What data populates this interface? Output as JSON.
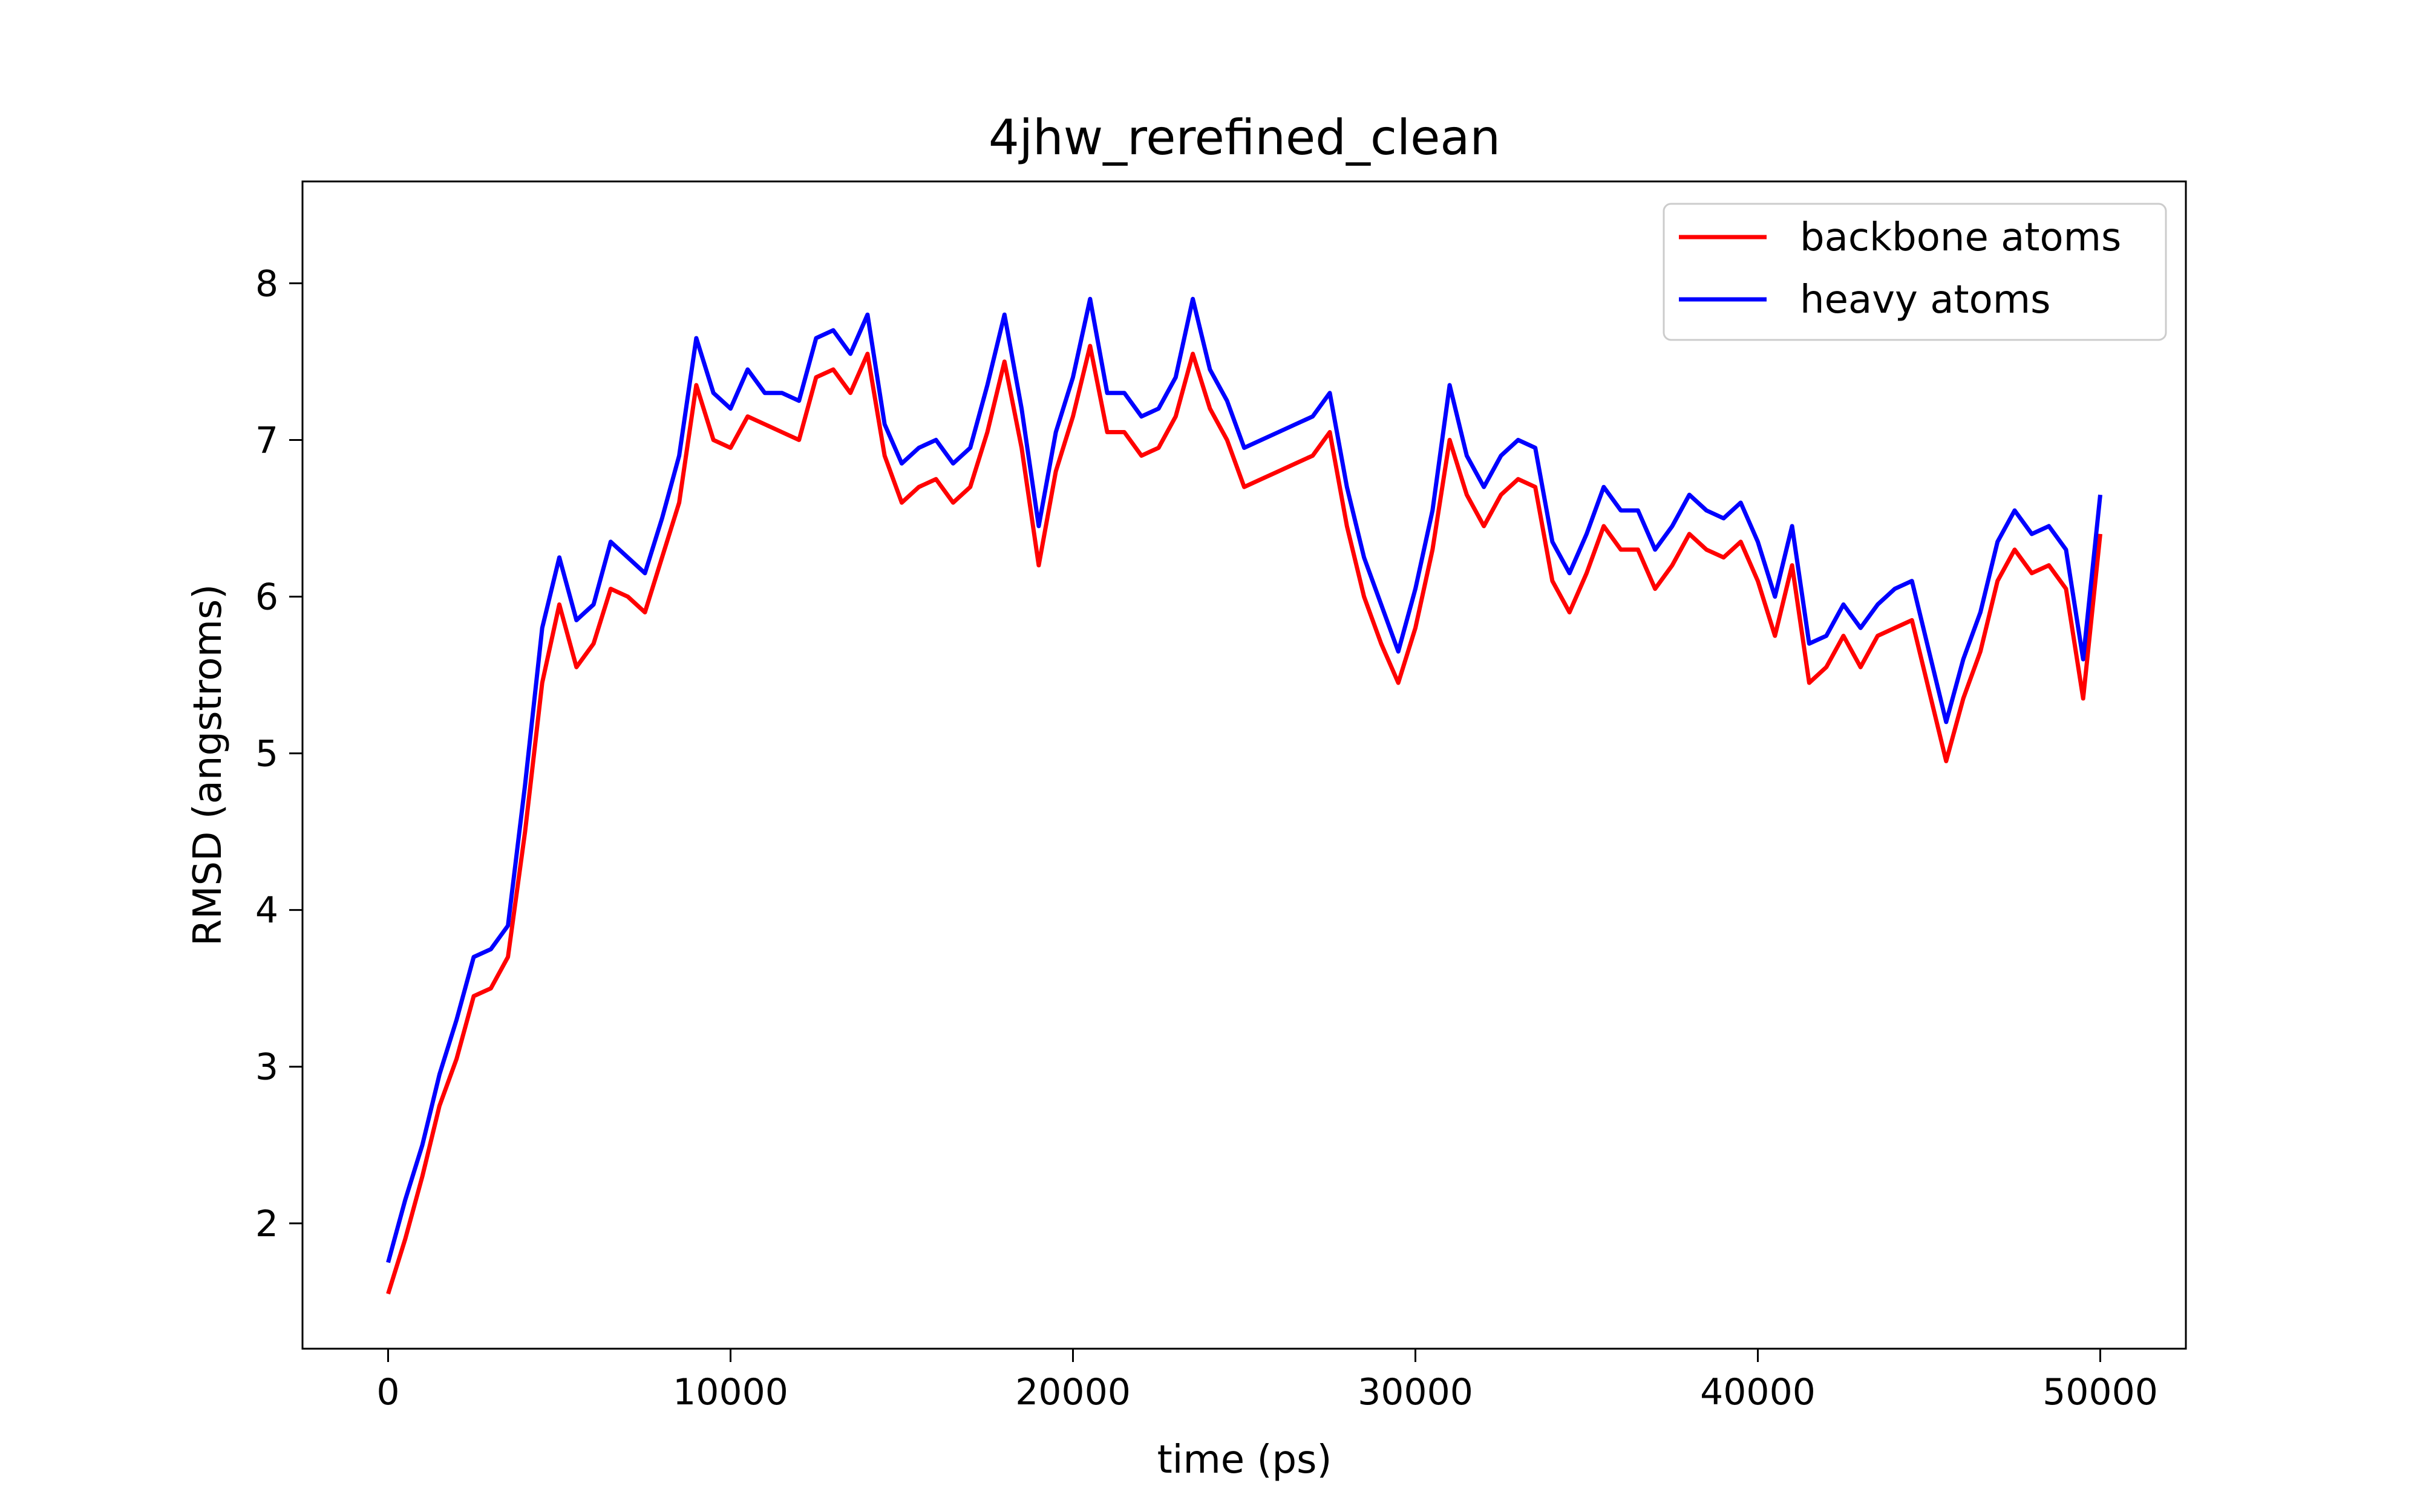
{
  "chart_data": {
    "type": "line",
    "title": "4jhw_rerefined_clean",
    "xlabel": "time (ps)",
    "ylabel": "RMSD (angstroms)",
    "xlim": [
      -2500,
      52500
    ],
    "ylim": [
      1.2,
      8.65
    ],
    "xticks": [
      0,
      10000,
      20000,
      30000,
      40000,
      50000
    ],
    "yticks": [
      2,
      3,
      4,
      5,
      6,
      7,
      8
    ],
    "grid": false,
    "legend": "upper right",
    "x": [
      0,
      500,
      1000,
      1500,
      2000,
      2500,
      3000,
      3500,
      4000,
      4500,
      5000,
      5500,
      6000,
      6500,
      7000,
      7500,
      8000,
      8500,
      9000,
      9500,
      10000,
      10500,
      11000,
      11500,
      12000,
      12500,
      13000,
      13500,
      14000,
      14500,
      15000,
      15500,
      16000,
      16500,
      17000,
      17500,
      18000,
      18500,
      19000,
      19500,
      20000,
      20500,
      21000,
      21500,
      22000,
      22500,
      23000,
      23500,
      24000,
      24500,
      25000,
      25500,
      26000,
      26500,
      27000,
      27500,
      28000,
      28500,
      29000,
      29500,
      30000,
      30500,
      31000,
      31500,
      32000,
      32500,
      33000,
      33500,
      34000,
      34500,
      35000,
      35500,
      36000,
      36500,
      37000,
      37500,
      38000,
      38500,
      39000,
      39500,
      40000,
      40500,
      41000,
      41500,
      42000,
      42500,
      43000,
      43500,
      44000,
      44500,
      45000,
      45500,
      46000,
      46500,
      47000,
      47500,
      48000,
      48500,
      49000,
      49500,
      50000
    ],
    "series": [
      {
        "name": "backbone atoms",
        "color": "#ff0000",
        "values": [
          1.55,
          1.9,
          2.3,
          2.75,
          3.05,
          3.45,
          3.5,
          3.7,
          4.5,
          5.45,
          5.95,
          5.55,
          5.7,
          6.05,
          6.0,
          5.9,
          6.25,
          6.6,
          7.35,
          7.0,
          6.95,
          7.15,
          7.1,
          7.05,
          7.0,
          7.4,
          7.45,
          7.3,
          7.55,
          6.9,
          6.6,
          6.7,
          6.75,
          6.6,
          6.7,
          7.05,
          7.5,
          6.95,
          6.2,
          6.8,
          7.15,
          7.6,
          7.05,
          7.05,
          6.9,
          6.95,
          7.15,
          7.55,
          7.2,
          7.0,
          6.7,
          6.75,
          6.8,
          6.85,
          6.9,
          7.05,
          6.45,
          6.0,
          5.7,
          5.45,
          5.8,
          6.3,
          7.0,
          6.65,
          6.45,
          6.65,
          6.75,
          6.7,
          6.1,
          5.9,
          6.15,
          6.45,
          6.3,
          6.3,
          6.05,
          6.2,
          6.4,
          6.3,
          6.25,
          6.35,
          6.1,
          5.75,
          6.2,
          5.45,
          5.55,
          5.75,
          5.55,
          5.75,
          5.8,
          5.85,
          5.4,
          4.95,
          5.35,
          5.65,
          6.1,
          6.3,
          6.15,
          6.2,
          6.05,
          5.35,
          6.4
        ]
      },
      {
        "name": "heavy atoms",
        "color": "#0000ff",
        "values": [
          1.75,
          2.15,
          2.5,
          2.95,
          3.3,
          3.7,
          3.75,
          3.9,
          4.8,
          5.8,
          6.25,
          5.85,
          5.95,
          6.35,
          6.25,
          6.15,
          6.5,
          6.9,
          7.65,
          7.3,
          7.2,
          7.45,
          7.3,
          7.3,
          7.25,
          7.65,
          7.7,
          7.55,
          7.8,
          7.1,
          6.85,
          6.95,
          7.0,
          6.85,
          6.95,
          7.35,
          7.8,
          7.2,
          6.45,
          7.05,
          7.4,
          7.9,
          7.3,
          7.3,
          7.15,
          7.2,
          7.4,
          7.9,
          7.45,
          7.25,
          6.95,
          7.0,
          7.05,
          7.1,
          7.15,
          7.3,
          6.7,
          6.25,
          5.95,
          5.65,
          6.05,
          6.55,
          7.35,
          6.9,
          6.7,
          6.9,
          7.0,
          6.95,
          6.35,
          6.15,
          6.4,
          6.7,
          6.55,
          6.55,
          6.3,
          6.45,
          6.65,
          6.55,
          6.5,
          6.6,
          6.35,
          6.0,
          6.45,
          5.7,
          5.75,
          5.95,
          5.8,
          5.95,
          6.05,
          6.1,
          5.65,
          5.2,
          5.6,
          5.9,
          6.35,
          6.55,
          6.4,
          6.45,
          6.3,
          5.6,
          6.65
        ]
      }
    ]
  }
}
